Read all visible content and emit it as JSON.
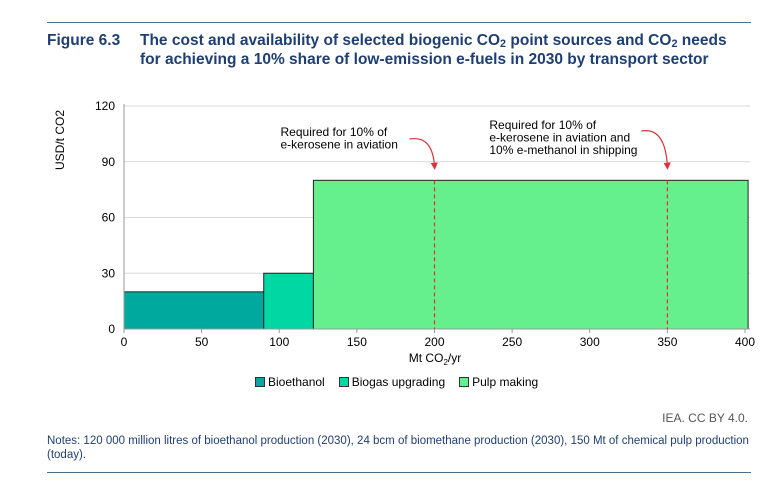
{
  "figure": {
    "label": "Figure 6.3",
    "title_part1": "The cost and availability of selected biogenic CO",
    "title_sub1": "2",
    "title_part2": " point sources and CO",
    "title_sub2": "2",
    "title_part3": " needs for achieving a 10% share of low-emission e-fuels in 2030 by transport sector"
  },
  "chart_data": {
    "type": "bar",
    "variant": "variable-width step (supply cost curve)",
    "ylabel": "USD/t CO2",
    "xlabel_main": "Mt CO",
    "xlabel_sub": "2",
    "xlabel_tail": "/yr",
    "xlim": [
      0,
      400
    ],
    "ylim": [
      0,
      120
    ],
    "x_ticks": [
      0,
      50,
      100,
      150,
      200,
      250,
      300,
      350,
      400
    ],
    "y_ticks": [
      0,
      30,
      60,
      90,
      120
    ],
    "series": [
      {
        "name": "Bioethanol",
        "x_start": 0,
        "x_end": 90,
        "value": 20,
        "color": "#00a99d"
      },
      {
        "name": "Biogas upgrading",
        "x_start": 90,
        "x_end": 122,
        "value": 30,
        "color": "#00d7a3"
      },
      {
        "name": "Pulp making",
        "x_start": 122,
        "x_end": 402,
        "value": 80,
        "color": "#66f08d"
      }
    ],
    "annotations": [
      {
        "x": 200,
        "lines": [
          "Required for 10% of",
          "e-kerosene in aviation"
        ]
      },
      {
        "x": 350,
        "lines": [
          "Required for 10% of",
          "e-kerosene in aviation and",
          "10% e-methanol in shipping"
        ]
      }
    ],
    "grid": true,
    "legend": "bottom"
  },
  "source": "IEA. CC BY 4.0.",
  "notes": "Notes: 120 000 million litres of bioethanol production (2030), 24 bcm of biomethane production (2030), 150 Mt of chemical pulp production (today)."
}
